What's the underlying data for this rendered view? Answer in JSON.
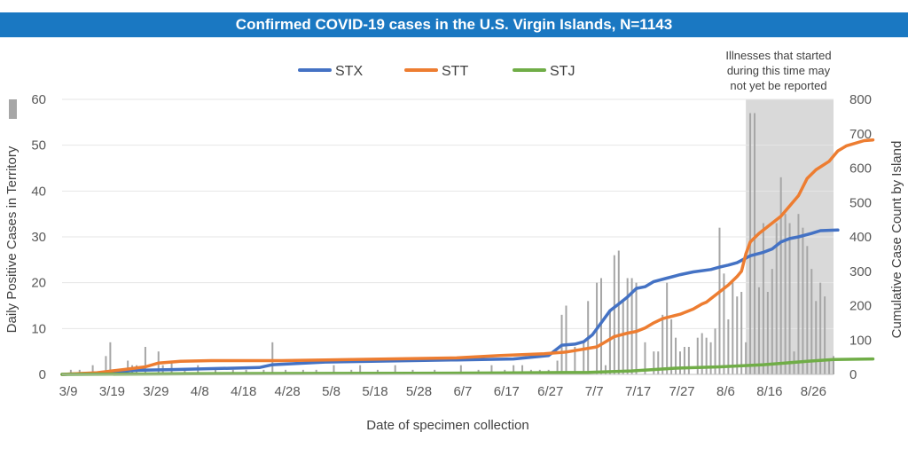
{
  "title": "Confirmed COVID-19 cases in the U.S. Virgin Islands, N=1143",
  "annotation": [
    "Illnesses that started",
    "during this time may",
    "not yet be reported"
  ],
  "colors": {
    "title_bar": "#1a78c2",
    "STX": "#4472c4",
    "STT": "#ed7d31",
    "STJ": "#70ad47",
    "bars": "#a6a6a6",
    "shade": "#d9d9d9"
  },
  "chart_data": {
    "type": "bar+line",
    "title": "Confirmed COVID-19 cases in the U.S. Virgin Islands, N=1143",
    "xlabel": "Date of specimen collection",
    "ylabel_left": "Daily Positive Cases in Territory",
    "ylabel_right": "Cumulative Case Count by Island",
    "ylim_left": [
      0,
      60
    ],
    "ylim_right": [
      0,
      800
    ],
    "yticks_left": [
      "0",
      "10",
      "20",
      "30",
      "40",
      "50",
      "60"
    ],
    "yticks_right": [
      "0",
      "100",
      "200",
      "300",
      "400",
      "500",
      "600",
      "700",
      "800"
    ],
    "x_start_date": "3/9",
    "x_days": 176,
    "xticks": [
      "3/9",
      "3/19",
      "3/29",
      "4/8",
      "4/18",
      "4/28",
      "5/8",
      "5/18",
      "5/28",
      "6/7",
      "6/17",
      "6/27",
      "7/7",
      "7/17",
      "7/27",
      "8/6",
      "8/16",
      "8/26"
    ],
    "shaded_from": "8/12",
    "legend": [
      "STX",
      "STT",
      "STJ"
    ],
    "daily_bars": [
      [
        "3/11",
        1
      ],
      [
        "3/13",
        1
      ],
      [
        "3/16",
        2
      ],
      [
        "3/19",
        4
      ],
      [
        "3/20",
        7
      ],
      [
        "3/22",
        1
      ],
      [
        "3/24",
        3
      ],
      [
        "3/25",
        2
      ],
      [
        "3/26",
        2
      ],
      [
        "3/28",
        6
      ],
      [
        "3/31",
        5
      ],
      [
        "4/1",
        2
      ],
      [
        "4/3",
        3
      ],
      [
        "4/6",
        1
      ],
      [
        "4/9",
        2
      ],
      [
        "4/13",
        1
      ],
      [
        "4/17",
        1
      ],
      [
        "4/20",
        1
      ],
      [
        "4/24",
        1
      ],
      [
        "4/26",
        7
      ],
      [
        "4/29",
        1
      ],
      [
        "5/3",
        1
      ],
      [
        "5/6",
        1
      ],
      [
        "5/10",
        2
      ],
      [
        "5/14",
        1
      ],
      [
        "5/16",
        2
      ],
      [
        "5/20",
        1
      ],
      [
        "5/24",
        2
      ],
      [
        "5/28",
        1
      ],
      [
        "6/2",
        1
      ],
      [
        "6/8",
        2
      ],
      [
        "6/12",
        1
      ],
      [
        "6/15",
        2
      ],
      [
        "6/18",
        1
      ],
      [
        "6/20",
        2
      ],
      [
        "6/22",
        2
      ],
      [
        "6/24",
        1
      ],
      [
        "6/26",
        1
      ],
      [
        "6/28",
        1
      ],
      [
        "6/30",
        3
      ],
      [
        "7/1",
        13
      ],
      [
        "7/2",
        15
      ],
      [
        "7/4",
        6
      ],
      [
        "7/6",
        7
      ],
      [
        "7/7",
        16
      ],
      [
        "7/9",
        20
      ],
      [
        "7/10",
        21
      ],
      [
        "7/11",
        2
      ],
      [
        "7/12",
        14
      ],
      [
        "7/13",
        26
      ],
      [
        "7/14",
        27
      ],
      [
        "7/15",
        16
      ],
      [
        "7/16",
        21
      ],
      [
        "7/17",
        21
      ],
      [
        "7/18",
        20
      ],
      [
        "7/20",
        7
      ],
      [
        "7/22",
        5
      ],
      [
        "7/23",
        5
      ],
      [
        "7/24",
        13
      ],
      [
        "7/25",
        20
      ],
      [
        "7/26",
        12
      ],
      [
        "7/27",
        8
      ],
      [
        "7/28",
        5
      ],
      [
        "7/29",
        6
      ],
      [
        "7/30",
        6
      ],
      [
        "8/1",
        8
      ],
      [
        "8/2",
        9
      ],
      [
        "8/3",
        8
      ],
      [
        "8/4",
        7
      ],
      [
        "8/5",
        10
      ],
      [
        "8/6",
        32
      ],
      [
        "8/7",
        22
      ],
      [
        "8/8",
        12
      ],
      [
        "8/9",
        20
      ],
      [
        "8/10",
        17
      ],
      [
        "8/11",
        18
      ],
      [
        "8/12",
        7
      ],
      [
        "8/13",
        57
      ],
      [
        "8/14",
        57
      ],
      [
        "8/15",
        19
      ],
      [
        "8/16",
        33
      ],
      [
        "8/17",
        18
      ],
      [
        "8/18",
        23
      ],
      [
        "8/19",
        33
      ],
      [
        "8/20",
        43
      ],
      [
        "8/21",
        35
      ],
      [
        "8/22",
        33
      ],
      [
        "8/23",
        5
      ],
      [
        "8/24",
        35
      ],
      [
        "8/25",
        32
      ],
      [
        "8/26",
        28
      ],
      [
        "8/27",
        23
      ],
      [
        "8/28",
        16
      ],
      [
        "8/29",
        20
      ],
      [
        "8/30",
        17
      ],
      [
        "8/31",
        3
      ],
      [
        "9/1",
        4
      ]
    ],
    "series": [
      {
        "name": "STX",
        "points": [
          [
            "3/9",
            0
          ],
          [
            "3/19",
            5
          ],
          [
            "3/26",
            12
          ],
          [
            "4/3",
            14
          ],
          [
            "4/23",
            20
          ],
          [
            "4/26",
            28
          ],
          [
            "5/8",
            36
          ],
          [
            "6/7",
            42
          ],
          [
            "6/20",
            45
          ],
          [
            "6/28",
            55
          ],
          [
            "7/1",
            85
          ],
          [
            "7/4",
            88
          ],
          [
            "7/6",
            95
          ],
          [
            "7/8",
            115
          ],
          [
            "7/10",
            150
          ],
          [
            "7/12",
            185
          ],
          [
            "7/14",
            205
          ],
          [
            "7/16",
            225
          ],
          [
            "7/18",
            250
          ],
          [
            "7/20",
            255
          ],
          [
            "7/22",
            270
          ],
          [
            "7/25",
            280
          ],
          [
            "7/28",
            290
          ],
          [
            "7/31",
            298
          ],
          [
            "8/4",
            305
          ],
          [
            "8/6",
            312
          ],
          [
            "8/8",
            318
          ],
          [
            "8/10",
            325
          ],
          [
            "8/13",
            345
          ],
          [
            "8/16",
            355
          ],
          [
            "8/18",
            365
          ],
          [
            "8/20",
            385
          ],
          [
            "8/22",
            395
          ],
          [
            "8/24",
            400
          ],
          [
            "8/27",
            410
          ],
          [
            "8/29",
            418
          ],
          [
            "9/2",
            420
          ]
        ]
      },
      {
        "name": "STT",
        "points": [
          [
            "3/9",
            0
          ],
          [
            "3/17",
            5
          ],
          [
            "3/23",
            14
          ],
          [
            "3/28",
            22
          ],
          [
            "3/31",
            33
          ],
          [
            "4/5",
            38
          ],
          [
            "4/12",
            40
          ],
          [
            "4/28",
            40
          ],
          [
            "5/8",
            42
          ],
          [
            "6/7",
            48
          ],
          [
            "6/17",
            55
          ],
          [
            "6/27",
            60
          ],
          [
            "7/2",
            65
          ],
          [
            "7/9",
            80
          ],
          [
            "7/11",
            95
          ],
          [
            "7/13",
            110
          ],
          [
            "7/16",
            120
          ],
          [
            "7/18",
            125
          ],
          [
            "7/20",
            135
          ],
          [
            "7/22",
            150
          ],
          [
            "7/24",
            162
          ],
          [
            "7/28",
            175
          ],
          [
            "7/31",
            190
          ],
          [
            "8/2",
            205
          ],
          [
            "8/3",
            210
          ],
          [
            "8/6",
            240
          ],
          [
            "8/8",
            260
          ],
          [
            "8/10",
            285
          ],
          [
            "8/11",
            300
          ],
          [
            "8/12",
            350
          ],
          [
            "8/13",
            385
          ],
          [
            "8/15",
            410
          ],
          [
            "8/18",
            440
          ],
          [
            "8/20",
            460
          ],
          [
            "8/22",
            490
          ],
          [
            "8/24",
            520
          ],
          [
            "8/26",
            570
          ],
          [
            "8/28",
            595
          ],
          [
            "8/31",
            620
          ],
          [
            "9/2",
            650
          ],
          [
            "9/4",
            665
          ],
          [
            "9/8",
            680
          ],
          [
            "9/10",
            682
          ]
        ]
      },
      {
        "name": "STJ",
        "points": [
          [
            "3/9",
            0
          ],
          [
            "4/8",
            2
          ],
          [
            "5/28",
            3
          ],
          [
            "6/17",
            4
          ],
          [
            "7/7",
            6
          ],
          [
            "7/17",
            10
          ],
          [
            "7/27",
            18
          ],
          [
            "8/6",
            22
          ],
          [
            "8/16",
            28
          ],
          [
            "8/26",
            38
          ],
          [
            "9/1",
            43
          ],
          [
            "9/10",
            45
          ]
        ]
      }
    ]
  }
}
